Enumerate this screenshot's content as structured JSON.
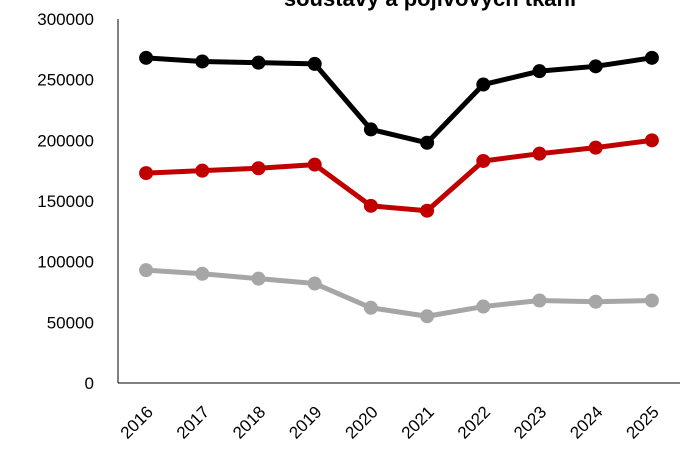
{
  "chart_data": {
    "type": "line",
    "title": "soustavy a pojivových tkání",
    "categories": [
      "2016",
      "2017",
      "2018",
      "2019",
      "2020",
      "2021",
      "2022",
      "2023",
      "2024",
      "2025"
    ],
    "series": [
      {
        "color": "#000000",
        "values": [
          268000,
          265000,
          264000,
          263000,
          209000,
          198000,
          246000,
          257000,
          261000,
          268000
        ]
      },
      {
        "color": "#c00000",
        "values": [
          173000,
          175000,
          177000,
          180000,
          146000,
          142000,
          183000,
          189000,
          194000,
          200000
        ]
      },
      {
        "color": "#a6a6a6",
        "values": [
          93000,
          90000,
          86000,
          82000,
          62000,
          55000,
          63000,
          68000,
          67000,
          68000
        ]
      }
    ],
    "ylim": [
      0,
      300000
    ],
    "yticks": [
      0,
      50000,
      100000,
      150000,
      200000,
      250000,
      300000
    ],
    "grid": false
  }
}
